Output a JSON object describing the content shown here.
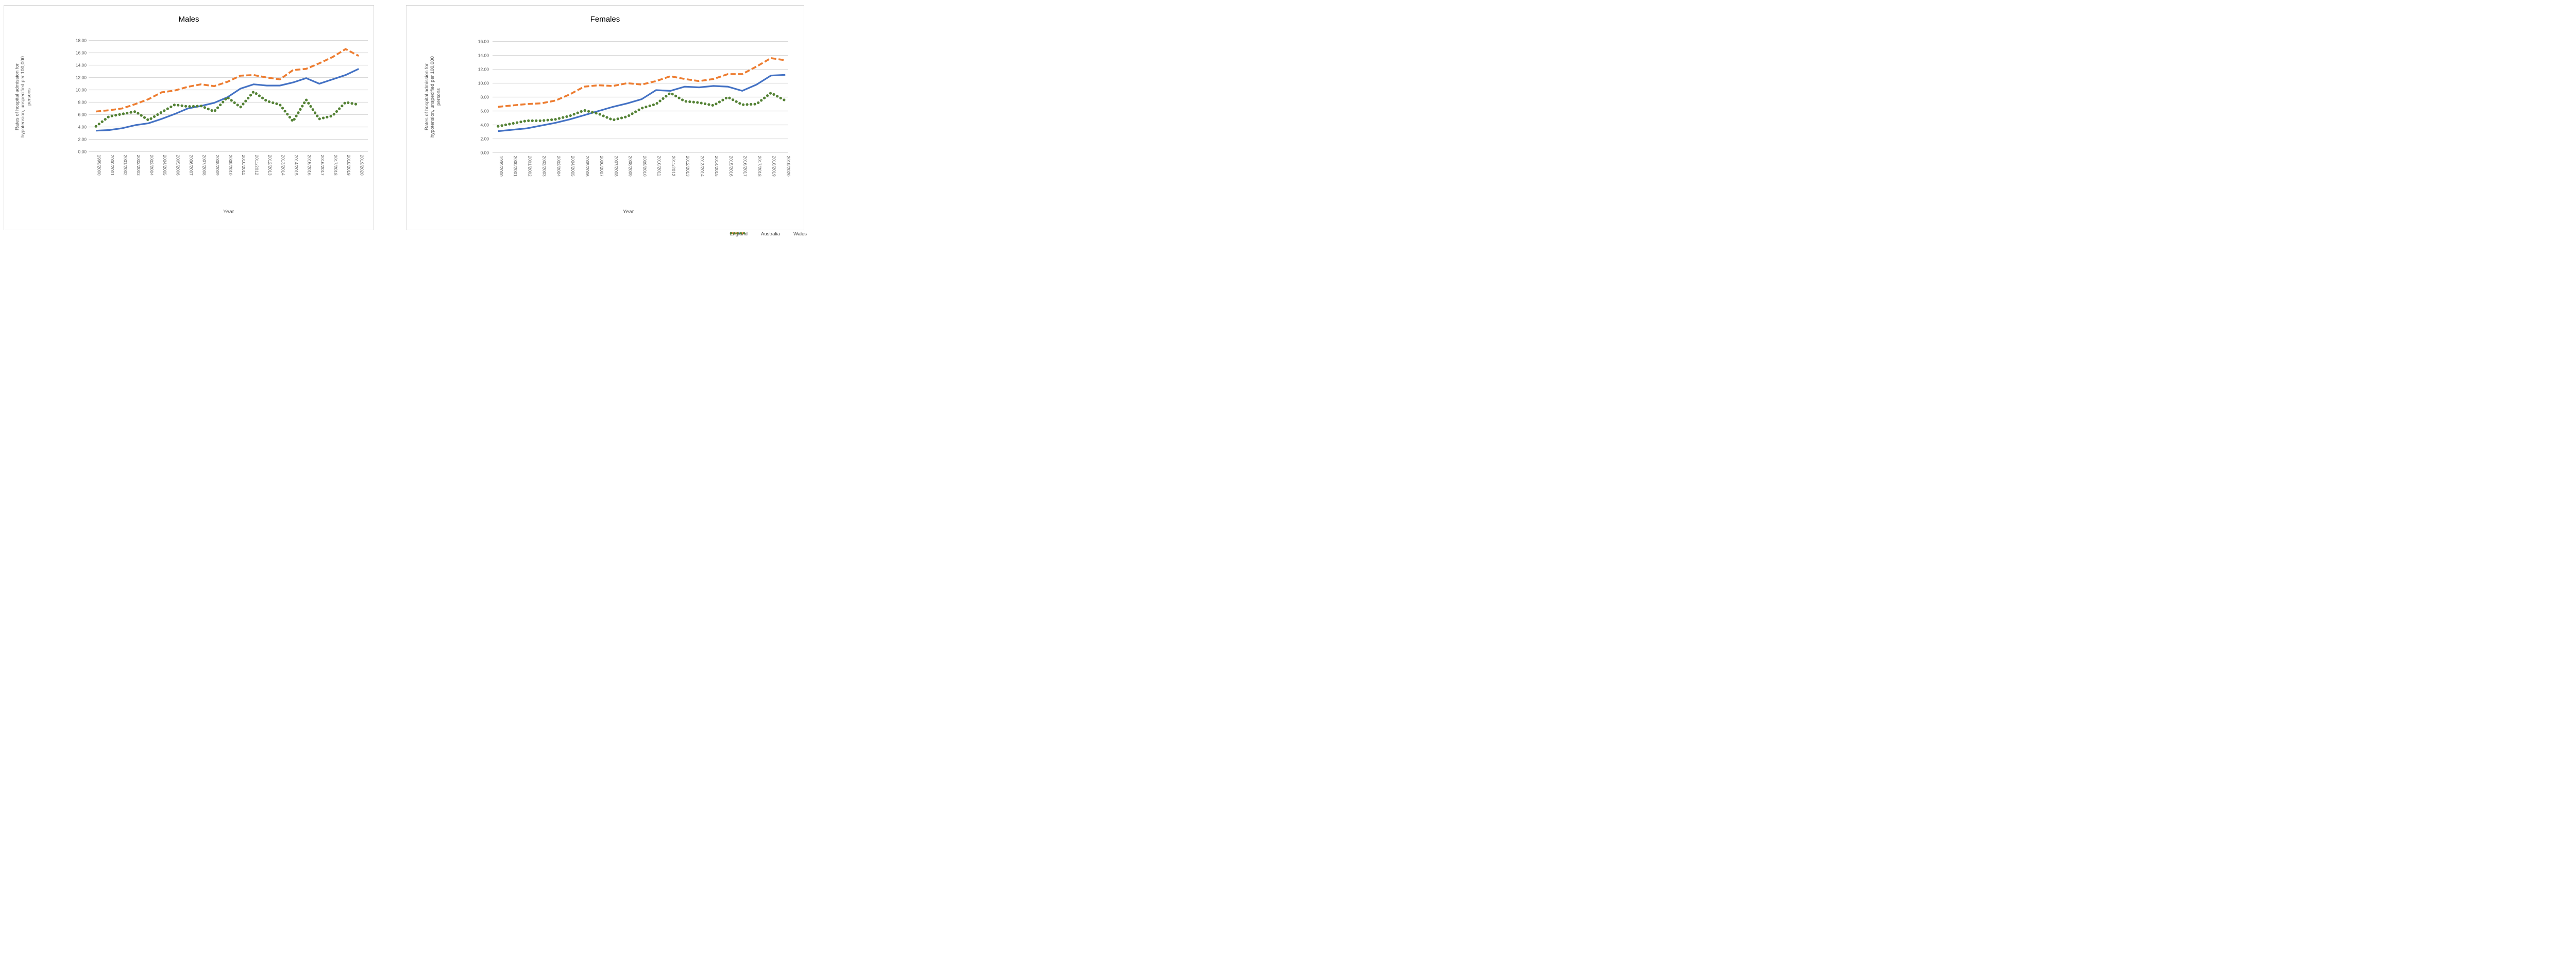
{
  "chart_data": [
    {
      "type": "line",
      "title": "Males",
      "xlabel": "Year",
      "ylabel": "Rates of hospital admission for hypotension, unspecified per 100,000 persons",
      "ylabel_lines": [
        "Rates of hospital admission for",
        "hypotension, unspecified per 100,000",
        "persons"
      ],
      "ylim": [
        0,
        18
      ],
      "y_tick_step": 2,
      "y_tick_labels": [
        "18.00",
        "16.00",
        "14.00",
        "12.00",
        "10.00",
        "8.00",
        "6.00",
        "4.00",
        "2.00",
        "0.00"
      ],
      "grid": true,
      "categories": [
        "1999/2000",
        "2000/2001",
        "2001/2002",
        "2002/2003",
        "2003/2004",
        "2004/2005",
        "2005/2006",
        "2006/2007",
        "2007/2008",
        "2008/2009",
        "2009/2010",
        "2010/2011",
        "2011/2012",
        "2012/2013",
        "2013/2014",
        "2014/2015",
        "2015/2016",
        "2016/2017",
        "2017/2018",
        "2018/2019",
        "2019/2020"
      ],
      "series": [
        {
          "name": "England",
          "color": "#4472C4",
          "style": "solid",
          "values": [
            3.4,
            3.5,
            3.8,
            4.3,
            4.6,
            5.3,
            6.1,
            7.0,
            7.4,
            7.9,
            8.8,
            10.2,
            10.9,
            10.7,
            10.7,
            11.2,
            11.9,
            11.0,
            11.7,
            12.4,
            13.4
          ]
        },
        {
          "name": "Australia",
          "color": "#ED7D31",
          "style": "dashed",
          "values": [
            6.5,
            6.7,
            7.0,
            7.7,
            8.5,
            9.6,
            9.9,
            10.5,
            10.9,
            10.6,
            11.3,
            12.3,
            12.4,
            12.0,
            11.7,
            13.2,
            13.4,
            14.3,
            15.3,
            16.6,
            15.5
          ]
        },
        {
          "name": "Wales",
          "color": "#548235",
          "style": "dotted",
          "values": [
            4.1,
            5.7,
            6.1,
            6.5,
            5.1,
            6.4,
            7.6,
            7.3,
            7.4,
            6.5,
            8.8,
            7.2,
            9.7,
            8.2,
            7.6,
            4.9,
            8.4,
            5.3,
            5.8,
            8.0,
            7.6
          ]
        }
      ]
    },
    {
      "type": "line",
      "title": "Females",
      "xlabel": "Year",
      "ylabel": "Rates of hospital admission for hypotension, unspecified per 100,000 persons",
      "ylabel_lines": [
        "Rates of hospital admission for",
        "hypotension, unspecified per 100,000",
        "persons"
      ],
      "ylim": [
        0,
        16
      ],
      "y_tick_step": 2,
      "y_tick_labels": [
        "16.00",
        "14.00",
        "12.00",
        "10.00",
        "8.00",
        "6.00",
        "4.00",
        "2.00",
        "0.00"
      ],
      "grid": true,
      "categories": [
        "1999/2000",
        "2000/2001",
        "2001/2002",
        "2002/2003",
        "2003/2004",
        "2004/2005",
        "2005/2006",
        "2006/2007",
        "2007/2008",
        "2008/2009",
        "2009/2010",
        "2010/2011",
        "2011/2012",
        "2012/2013",
        "2013/2014",
        "2014/2015",
        "2015/2016",
        "2016/2017",
        "2017/2018",
        "2018/2019",
        "2019/2020"
      ],
      "series": [
        {
          "name": "England",
          "color": "#4472C4",
          "style": "solid",
          "values": [
            3.1,
            3.3,
            3.5,
            3.9,
            4.3,
            4.8,
            5.4,
            6.0,
            6.6,
            7.1,
            7.7,
            9.0,
            8.9,
            9.5,
            9.4,
            9.6,
            9.5,
            8.9,
            9.8,
            11.1,
            11.2
          ]
        },
        {
          "name": "Australia",
          "color": "#ED7D31",
          "style": "dashed",
          "values": [
            6.6,
            6.8,
            7.0,
            7.1,
            7.5,
            8.4,
            9.5,
            9.7,
            9.6,
            10.0,
            9.8,
            10.3,
            11.0,
            10.6,
            10.3,
            10.6,
            11.3,
            11.3,
            12.4,
            13.6,
            13.3
          ]
        },
        {
          "name": "Wales",
          "color": "#548235",
          "style": "dotted",
          "values": [
            3.8,
            4.2,
            4.6,
            4.6,
            4.8,
            5.3,
            6.1,
            5.6,
            4.7,
            5.2,
            6.4,
            7.0,
            8.6,
            7.4,
            7.2,
            6.8,
            8.0,
            6.9,
            7.0,
            8.6,
            7.5
          ]
        }
      ]
    }
  ],
  "legend": {
    "position": "bottom-right",
    "items": [
      {
        "label": "England",
        "color": "#4472C4",
        "swatch": "solid-line"
      },
      {
        "label": "Australia",
        "color": "#ED7D31",
        "swatch": "dashed-line"
      },
      {
        "label": "Wales",
        "color": "#548235",
        "swatch": "dotted-line"
      }
    ]
  },
  "colors": {
    "england": "#4472C4",
    "australia": "#ED7D31",
    "wales": "#548235",
    "gridline": "#d9d9d9",
    "axis_text": "#595959",
    "card_border": "#d9d9d9",
    "background": "#ffffff"
  }
}
